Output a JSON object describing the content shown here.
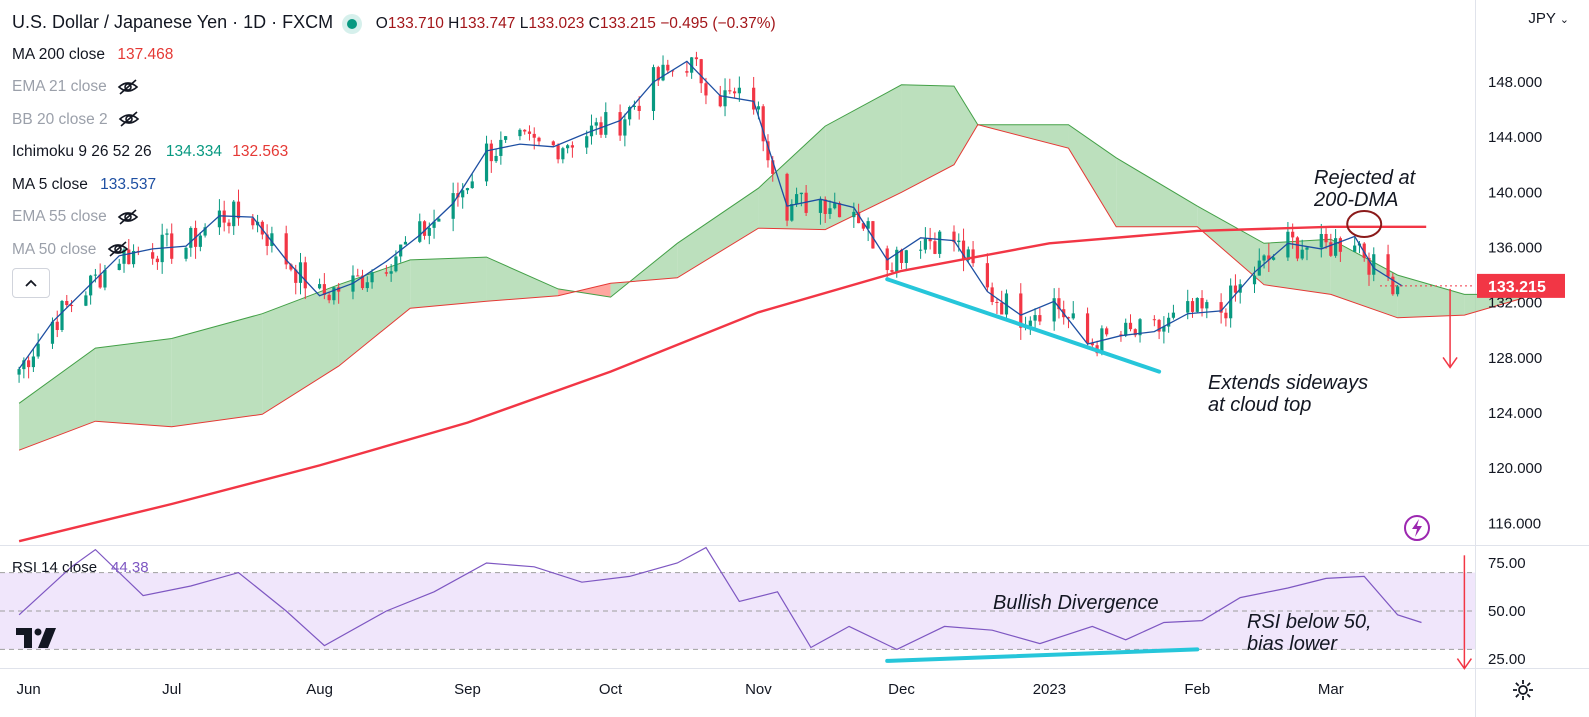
{
  "header": {
    "title": "U.S. Dollar / Japanese Yen · 1D · FXCM",
    "ohlc": {
      "O": "133.710",
      "H": "133.747",
      "L": "133.023",
      "C": "133.215",
      "change": "−0.495 (−0.37%)"
    }
  },
  "indicators": [
    {
      "label": "MA 200 close",
      "value": "137.468",
      "value_color": "#e53935",
      "hidden": false
    },
    {
      "label": "EMA 21 close",
      "value": "",
      "hidden": true
    },
    {
      "label": "BB 20 close 2",
      "value": "",
      "hidden": true
    },
    {
      "label": "Ichimoku 9 26 52 26",
      "value": "134.334",
      "value2": "132.563",
      "hidden": false
    },
    {
      "label": "MA 5 close",
      "value": "133.537",
      "value_color": "#1e4fa2",
      "hidden": false
    },
    {
      "label": "EMA 55 close",
      "value": "",
      "hidden": true
    },
    {
      "label": "MA 50 close",
      "value": "",
      "hidden": true
    }
  ],
  "currency": "JPY",
  "rsi": {
    "label": "RSI 14 close",
    "value": "44.38"
  },
  "colors": {
    "up": "#089981",
    "down": "#f23645",
    "ma200": "#f23645",
    "ma5": "#1e4fa2",
    "cloud_bull": "#a5d6a7",
    "cloud_bear": "#ff8a80",
    "rsi": "#7e57c2",
    "rsi_band": "#f0e6fb",
    "annotation_line": "#26c6da",
    "price_tag": "#f23645"
  },
  "chart_data": [
    {
      "type": "candlestick",
      "title": "U.S. Dollar / Japanese Yen · 1D · FXCM",
      "ylim": [
        114,
        151
      ],
      "y_ticks": [
        "148.000",
        "144.000",
        "140.000",
        "136.000",
        "132.000",
        "128.000",
        "124.000",
        "120.000",
        "116.000"
      ],
      "x_labels": [
        "Jun",
        "Jul",
        "Aug",
        "Sep",
        "Oct",
        "Nov",
        "Dec",
        "2023",
        "Feb",
        "Mar"
      ],
      "last_price": "133.215",
      "close_path": [
        {
          "t": "2022-05-30",
          "y": 127.2
        },
        {
          "t": "2022-06-06",
          "y": 130.6
        },
        {
          "t": "2022-06-13",
          "y": 133.0
        },
        {
          "t": "2022-06-20",
          "y": 135.4
        },
        {
          "t": "2022-06-27",
          "y": 135.9
        },
        {
          "t": "2022-07-04",
          "y": 136.1
        },
        {
          "t": "2022-07-11",
          "y": 138.3
        },
        {
          "t": "2022-07-18",
          "y": 138.2
        },
        {
          "t": "2022-07-25",
          "y": 135.1
        },
        {
          "t": "2022-08-01",
          "y": 132.5
        },
        {
          "t": "2022-08-08",
          "y": 133.4
        },
        {
          "t": "2022-08-15",
          "y": 135.0
        },
        {
          "t": "2022-08-22",
          "y": 136.9
        },
        {
          "t": "2022-08-29",
          "y": 139.2
        },
        {
          "t": "2022-09-05",
          "y": 143.0
        },
        {
          "t": "2022-09-12",
          "y": 143.5
        },
        {
          "t": "2022-09-19",
          "y": 143.3
        },
        {
          "t": "2022-09-26",
          "y": 144.3
        },
        {
          "t": "2022-10-03",
          "y": 145.2
        },
        {
          "t": "2022-10-10",
          "y": 148.0
        },
        {
          "t": "2022-10-17",
          "y": 149.5
        },
        {
          "t": "2022-10-24",
          "y": 147.0
        },
        {
          "t": "2022-10-31",
          "y": 146.6
        },
        {
          "t": "2022-11-07",
          "y": 139.0
        },
        {
          "t": "2022-11-14",
          "y": 139.5
        },
        {
          "t": "2022-11-21",
          "y": 138.9
        },
        {
          "t": "2022-11-28",
          "y": 135.1
        },
        {
          "t": "2022-12-05",
          "y": 136.7
        },
        {
          "t": "2022-12-12",
          "y": 136.5
        },
        {
          "t": "2022-12-19",
          "y": 132.8
        },
        {
          "t": "2022-12-26",
          "y": 131.1
        },
        {
          "t": "2023-01-02",
          "y": 132.1
        },
        {
          "t": "2023-01-09",
          "y": 129.0
        },
        {
          "t": "2023-01-16",
          "y": 129.6
        },
        {
          "t": "2023-01-23",
          "y": 129.9
        },
        {
          "t": "2023-01-30",
          "y": 131.2
        },
        {
          "t": "2023-02-06",
          "y": 131.4
        },
        {
          "t": "2023-02-13",
          "y": 134.2
        },
        {
          "t": "2023-02-20",
          "y": 136.3
        },
        {
          "t": "2023-02-27",
          "y": 135.9
        },
        {
          "t": "2023-03-06",
          "y": 136.8
        },
        {
          "t": "2023-03-10",
          "y": 134.5
        },
        {
          "t": "2023-03-16",
          "y": 133.2
        }
      ],
      "ma200": [
        {
          "t": "2022-05-30",
          "y": 114.7
        },
        {
          "t": "2022-07-01",
          "y": 117.4
        },
        {
          "t": "2022-08-01",
          "y": 120.2
        },
        {
          "t": "2022-09-01",
          "y": 123.3
        },
        {
          "t": "2022-10-01",
          "y": 127.0
        },
        {
          "t": "2022-11-01",
          "y": 131.3
        },
        {
          "t": "2022-12-01",
          "y": 134.3
        },
        {
          "t": "2023-01-01",
          "y": 136.3
        },
        {
          "t": "2023-02-01",
          "y": 137.2
        },
        {
          "t": "2023-03-01",
          "y": 137.5
        },
        {
          "t": "2023-03-21",
          "y": 137.5
        }
      ],
      "cloud_top": [
        {
          "t": "2022-05-30",
          "y": 124.7
        },
        {
          "t": "2022-06-15",
          "y": 128.7
        },
        {
          "t": "2022-07-01",
          "y": 129.4
        },
        {
          "t": "2022-07-20",
          "y": 131.2
        },
        {
          "t": "2022-08-05",
          "y": 133.3
        },
        {
          "t": "2022-08-20",
          "y": 135.1
        },
        {
          "t": "2022-09-05",
          "y": 135.3
        },
        {
          "t": "2022-09-20",
          "y": 133.0
        },
        {
          "t": "2022-10-01",
          "y": 132.4
        },
        {
          "t": "2022-10-15",
          "y": 136.3
        },
        {
          "t": "2022-11-01",
          "y": 140.3
        },
        {
          "t": "2022-11-15",
          "y": 144.8
        },
        {
          "t": "2022-12-01",
          "y": 147.8
        },
        {
          "t": "2022-12-12",
          "y": 147.7
        },
        {
          "t": "2022-12-17",
          "y": 144.9
        },
        {
          "t": "2023-01-05",
          "y": 144.9
        },
        {
          "t": "2023-01-15",
          "y": 142.5
        },
        {
          "t": "2023-02-01",
          "y": 139.0
        },
        {
          "t": "2023-02-15",
          "y": 136.3
        },
        {
          "t": "2023-03-01",
          "y": 136.6
        },
        {
          "t": "2023-03-15",
          "y": 134.0
        },
        {
          "t": "2023-03-29",
          "y": 132.6
        },
        {
          "t": "2023-04-10",
          "y": 132.6
        }
      ],
      "cloud_bottom": [
        {
          "t": "2022-05-30",
          "y": 121.3
        },
        {
          "t": "2022-06-15",
          "y": 123.4
        },
        {
          "t": "2022-07-01",
          "y": 123.0
        },
        {
          "t": "2022-07-20",
          "y": 123.9
        },
        {
          "t": "2022-08-05",
          "y": 127.4
        },
        {
          "t": "2022-08-20",
          "y": 131.6
        },
        {
          "t": "2022-09-05",
          "y": 132.1
        },
        {
          "t": "2022-09-20",
          "y": 132.5
        },
        {
          "t": "2022-10-01",
          "y": 133.4
        },
        {
          "t": "2022-10-15",
          "y": 133.8
        },
        {
          "t": "2022-11-01",
          "y": 137.4
        },
        {
          "t": "2022-11-15",
          "y": 137.3
        },
        {
          "t": "2022-12-01",
          "y": 140.0
        },
        {
          "t": "2022-12-12",
          "y": 142.0
        },
        {
          "t": "2022-12-17",
          "y": 144.9
        },
        {
          "t": "2023-01-05",
          "y": 143.2
        },
        {
          "t": "2023-01-15",
          "y": 137.5
        },
        {
          "t": "2023-02-01",
          "y": 137.5
        },
        {
          "t": "2023-02-15",
          "y": 133.3
        },
        {
          "t": "2023-03-01",
          "y": 132.6
        },
        {
          "t": "2023-03-15",
          "y": 130.9
        },
        {
          "t": "2023-03-29",
          "y": 131.1
        },
        {
          "t": "2023-04-10",
          "y": 132.3
        }
      ],
      "annotations": [
        "Rejected at\n200-DMA",
        "Extends sideways\nat cloud top"
      ]
    },
    {
      "type": "line",
      "title": "RSI 14 close",
      "ylim": [
        18,
        93
      ],
      "y_ticks": [
        "75.00",
        "50.00",
        "25.00"
      ],
      "band": [
        30,
        70
      ],
      "series": [
        {
          "name": "RSI 14 close",
          "points": [
            {
              "t": "2022-05-30",
              "y": 48
            },
            {
              "t": "2022-06-10",
              "y": 73
            },
            {
              "t": "2022-06-15",
              "y": 82
            },
            {
              "t": "2022-06-25",
              "y": 58
            },
            {
              "t": "2022-07-05",
              "y": 63
            },
            {
              "t": "2022-07-15",
              "y": 70
            },
            {
              "t": "2022-07-25",
              "y": 50
            },
            {
              "t": "2022-08-02",
              "y": 32
            },
            {
              "t": "2022-08-15",
              "y": 50
            },
            {
              "t": "2022-08-25",
              "y": 60
            },
            {
              "t": "2022-09-05",
              "y": 75
            },
            {
              "t": "2022-09-15",
              "y": 73
            },
            {
              "t": "2022-09-25",
              "y": 65
            },
            {
              "t": "2022-10-05",
              "y": 68
            },
            {
              "t": "2022-10-15",
              "y": 75
            },
            {
              "t": "2022-10-21",
              "y": 83
            },
            {
              "t": "2022-10-28",
              "y": 55
            },
            {
              "t": "2022-11-05",
              "y": 60
            },
            {
              "t": "2022-11-12",
              "y": 31
            },
            {
              "t": "2022-11-20",
              "y": 42
            },
            {
              "t": "2022-11-30",
              "y": 30
            },
            {
              "t": "2022-12-10",
              "y": 42
            },
            {
              "t": "2022-12-20",
              "y": 40
            },
            {
              "t": "2022-12-30",
              "y": 33
            },
            {
              "t": "2023-01-10",
              "y": 42
            },
            {
              "t": "2023-01-17",
              "y": 35
            },
            {
              "t": "2023-01-25",
              "y": 44
            },
            {
              "t": "2023-02-02",
              "y": 45
            },
            {
              "t": "2023-02-10",
              "y": 57
            },
            {
              "t": "2023-02-20",
              "y": 62
            },
            {
              "t": "2023-02-28",
              "y": 67
            },
            {
              "t": "2023-03-08",
              "y": 68
            },
            {
              "t": "2023-03-15",
              "y": 48
            },
            {
              "t": "2023-03-20",
              "y": 44
            }
          ]
        }
      ],
      "annotations": [
        "Bullish Divergence",
        "RSI below 50,\nbias lower"
      ]
    }
  ]
}
